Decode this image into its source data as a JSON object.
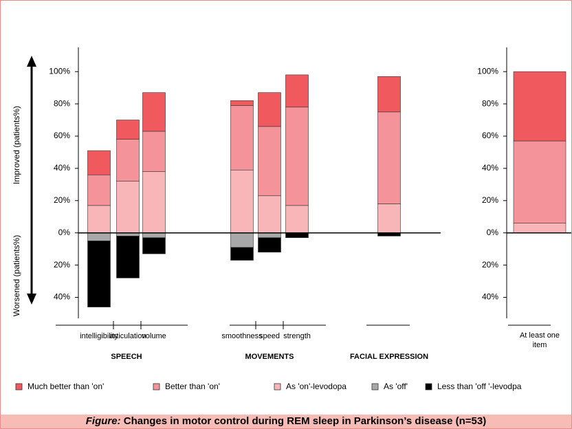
{
  "caption": {
    "label": "Figure:",
    "text": "Changes in motor control during REM sleep in Parkinson’s disease (n=53)"
  },
  "chart_data": [
    {
      "type": "bar",
      "stacked": true,
      "y_label_top": "Improved (patients%)",
      "y_label_bottom": "Worsened (patients%)",
      "groups": [
        {
          "name": "SPEECH",
          "categories": [
            "intelligibility",
            "articulation",
            "volume"
          ]
        },
        {
          "name": "MOVEMENTS",
          "categories": [
            "smoothness",
            "speed",
            "strength"
          ]
        },
        {
          "name": "FACIAL EXPRESSION",
          "categories": [
            null
          ]
        }
      ],
      "series": [
        {
          "name": "Much better than 'on'",
          "color": "#f0595e",
          "values": [
            15,
            12,
            24,
            3,
            21,
            20,
            22
          ]
        },
        {
          "name": "Better than 'on'",
          "color": "#f5939a",
          "values": [
            19,
            26,
            25,
            40,
            43,
            61,
            57
          ]
        },
        {
          "name": "As 'on'-levodopa",
          "color": "#f9b6b9",
          "values": [
            17,
            32,
            38,
            39,
            23,
            17,
            18
          ]
        },
        {
          "name": "As 'off'",
          "color": "#a8a8a8",
          "values": [
            -5,
            -2,
            -3,
            -9,
            -3,
            0,
            0
          ]
        },
        {
          "name": "Less than 'off '-levodpa",
          "color": "#000000",
          "values": [
            -41,
            -26,
            -10,
            -8,
            -9,
            -3,
            -2
          ]
        }
      ],
      "ylim": [
        -53,
        115
      ],
      "yticks": [
        {
          "value": -40,
          "label": "40%"
        },
        {
          "value": -20,
          "label": "20%"
        },
        {
          "value": 0,
          "label": "0%"
        },
        {
          "value": 20,
          "label": "20%"
        },
        {
          "value": 40,
          "label": "40%"
        },
        {
          "value": 60,
          "label": "60%"
        },
        {
          "value": 80,
          "label": "80%"
        },
        {
          "value": 100,
          "label": "100%"
        }
      ]
    },
    {
      "type": "bar",
      "stacked": true,
      "categories": [
        "At least one item"
      ],
      "series": [
        {
          "color": "#f0595e",
          "values": [
            43
          ]
        },
        {
          "color": "#f5939a",
          "values": [
            51
          ]
        },
        {
          "color": "#f9b6b9",
          "values": [
            6
          ]
        },
        {
          "color": "#a8a8a8",
          "values": [
            0
          ]
        },
        {
          "color": "#000000",
          "values": [
            0
          ]
        }
      ],
      "ylim": [
        -53,
        115
      ],
      "yticks": [
        {
          "value": -40,
          "label": "40%"
        },
        {
          "value": -20,
          "label": "20%"
        },
        {
          "value": 0,
          "label": "0%"
        },
        {
          "value": 20,
          "label": "20%"
        },
        {
          "value": 40,
          "label": "40%"
        },
        {
          "value": 60,
          "label": "60%"
        },
        {
          "value": 80,
          "label": "80%"
        },
        {
          "value": 100,
          "label": "100%"
        }
      ]
    }
  ]
}
